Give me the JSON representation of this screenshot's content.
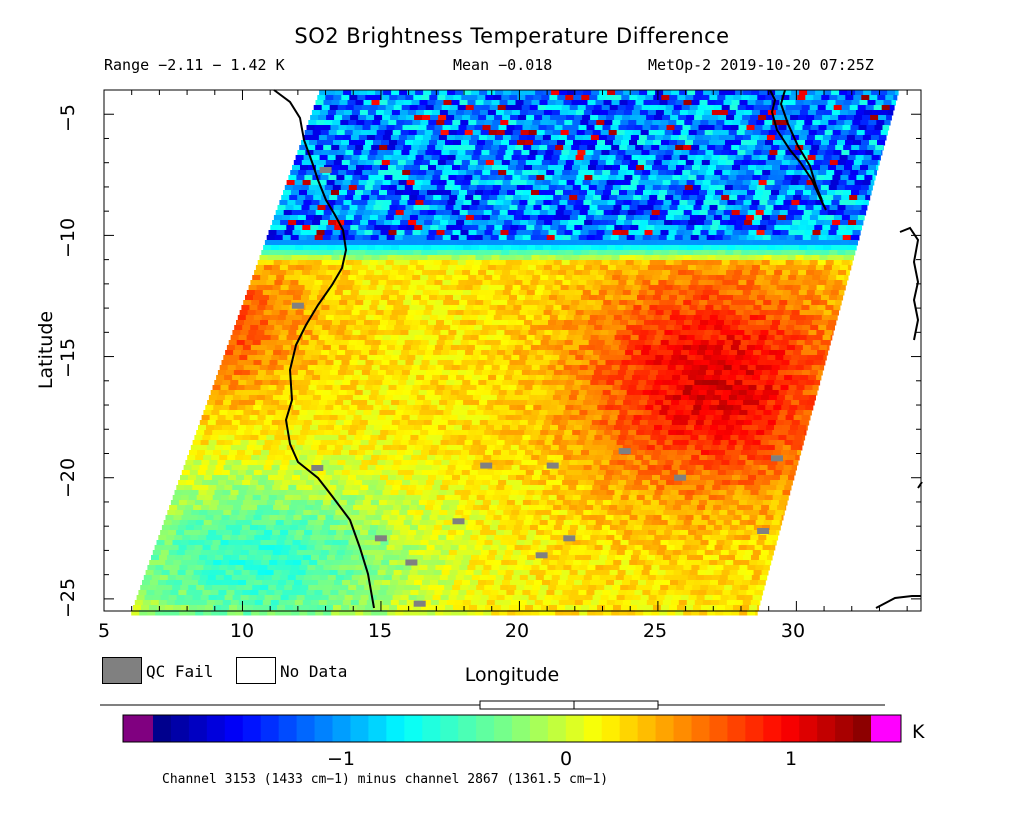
{
  "header": {
    "title": "SO2 Brightness Temperature Difference",
    "range_text": "Range −2.11 − 1.42 K",
    "mean_text": "Mean −0.018",
    "source_text": "MetOp-2 2019-10-20 07:25Z"
  },
  "legend": {
    "qc_fail_label": "QC Fail",
    "no_data_label": "No Data",
    "qc_fail_color": "#808080",
    "no_data_color": "#ffffff"
  },
  "colorbar": {
    "unit": "K",
    "min": -1.85,
    "max": 1.35,
    "ticks": [
      -1,
      0,
      1
    ],
    "tick_labels": [
      "−1",
      "0",
      "1"
    ],
    "under_color": "#800080",
    "over_color": "#ff00ff",
    "box_stats": {
      "whisker_low": -2.11,
      "q1": -0.38,
      "median": 0.03,
      "q3": 0.42,
      "whisker_high": 1.42
    },
    "caption": "Channel 3153 (1433 cm−1) minus channel 2867 (1361.5 cm−1)"
  },
  "chart_data": {
    "type": "heatmap",
    "title": "SO2 Brightness Temperature Difference",
    "xlabel": "Longitude",
    "ylabel": "Latitude",
    "xlim": [
      5,
      34.5
    ],
    "ylim": [
      -25.5,
      -4
    ],
    "xticks": [
      5,
      10,
      15,
      20,
      25,
      30
    ],
    "xtick_labels": [
      "5",
      "10",
      "15",
      "20",
      "25",
      "30"
    ],
    "yticks": [
      -5,
      -10,
      -15,
      -20,
      -25
    ],
    "ytick_labels": [
      "−5",
      "−10",
      "−15",
      "−20",
      "−25"
    ],
    "swath_corners": {
      "top_left_lon": 12.8,
      "top_right_lon": 33.7,
      "bottom_left_lon": 6.0,
      "bottom_right_lon": 28.6
    },
    "field_regions": [
      {
        "name": "northern strip",
        "lat_range": [
          -10.5,
          -4
        ],
        "mean_value": -1.1
      },
      {
        "name": "western warm band",
        "lat": -13.5,
        "lon": 8.5,
        "mean_value": 0.8
      },
      {
        "name": "eastern warm plume",
        "lat": -16.0,
        "lon": 27.0,
        "mean_value": 1.05
      },
      {
        "name": "central region",
        "lat": -14.5,
        "lon": 19.0,
        "mean_value": 0.2
      },
      {
        "name": "southwest cool region",
        "lat": -23.5,
        "lon": 10.5,
        "mean_value": -0.55
      }
    ],
    "qc_fail_pixels": [
      {
        "lon": 13.0,
        "lat": -7.3
      },
      {
        "lon": 12.0,
        "lat": -12.9
      },
      {
        "lon": 12.7,
        "lat": -19.6
      },
      {
        "lon": 15.0,
        "lat": -22.5
      },
      {
        "lon": 16.1,
        "lat": -23.5
      },
      {
        "lon": 17.8,
        "lat": -21.8
      },
      {
        "lon": 18.8,
        "lat": -19.5
      },
      {
        "lon": 21.2,
        "lat": -19.5
      },
      {
        "lon": 23.8,
        "lat": -18.9
      },
      {
        "lon": 20.8,
        "lat": -23.2
      },
      {
        "lon": 21.8,
        "lat": -22.5
      },
      {
        "lon": 25.8,
        "lat": -20.0
      },
      {
        "lon": 29.3,
        "lat": -19.2
      },
      {
        "lon": 28.8,
        "lat": -22.2
      },
      {
        "lon": 16.4,
        "lat": -25.2
      }
    ]
  }
}
